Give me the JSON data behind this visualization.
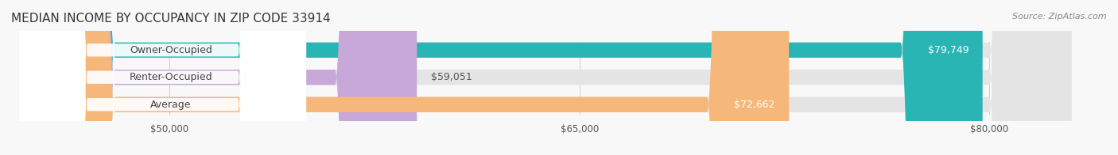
{
  "title": "MEDIAN INCOME BY OCCUPANCY IN ZIP CODE 33914",
  "source": "Source: ZipAtlas.com",
  "categories": [
    "Owner-Occupied",
    "Renter-Occupied",
    "Average"
  ],
  "values": [
    79749,
    59051,
    72662
  ],
  "bar_colors": [
    "#2ab5b5",
    "#c8a8d8",
    "#f5b87a"
  ],
  "bar_bg_color": "#eeeeee",
  "label_colors": [
    "#ffffff",
    "#555555",
    "#ffffff"
  ],
  "value_labels": [
    "$79,749",
    "$59,051",
    "$72,662"
  ],
  "xmin": 45000,
  "xmax": 83000,
  "xticks": [
    50000,
    65000,
    80000
  ],
  "xtick_labels": [
    "$50,000",
    "$65,000",
    "$80,000"
  ],
  "title_fontsize": 11,
  "source_fontsize": 8,
  "label_fontsize": 9,
  "value_fontsize": 9,
  "background_color": "#f8f8f8",
  "bar_bg_color2": "#e8e8e8"
}
